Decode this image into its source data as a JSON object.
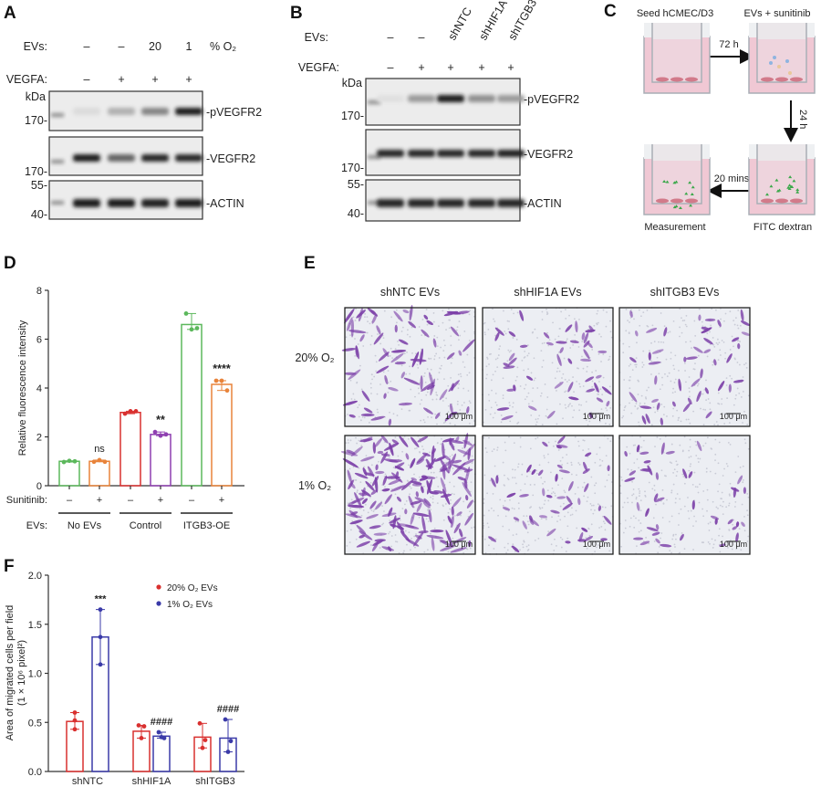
{
  "panel_labels": {
    "a": "A",
    "b": "B",
    "c": "C",
    "d": "D",
    "e": "E",
    "f": "F"
  },
  "panel_a": {
    "evs_label": "EVs:",
    "evs_values": [
      "–",
      "–",
      "20",
      "1"
    ],
    "evs_unit": "% O₂",
    "vegfa_label": "VEGFA:",
    "vegfa_values": [
      "–",
      "+",
      "+",
      "+"
    ],
    "kda": "kDa",
    "markers": {
      "p170": "170-",
      "v170": "170-",
      "a55": "55-",
      "a40": "40-"
    },
    "blots": [
      {
        "name": "-pVEGFR2",
        "band_intensity": [
          0.05,
          0.25,
          0.45,
          0.95
        ]
      },
      {
        "name": "-VEGFR2",
        "band_intensity": [
          0.95,
          0.6,
          0.9,
          0.9
        ]
      },
      {
        "name": "-ACTIN",
        "band_intensity": [
          0.95,
          0.95,
          0.92,
          0.95
        ]
      }
    ]
  },
  "panel_b": {
    "evs_label": "EVs:",
    "evs_values": [
      "–",
      "–",
      "shNTC",
      "shHIF1A",
      "shITGB3"
    ],
    "vegfa_label": "VEGFA:",
    "vegfa_values": [
      "–",
      "+",
      "+",
      "+",
      "+"
    ],
    "kda": "kDa",
    "markers": {
      "p170": "170-",
      "v170": "170-",
      "a55": "55-",
      "a40": "40-"
    },
    "blots": [
      {
        "name": "-pVEGFR2",
        "band_intensity": [
          0.03,
          0.35,
          0.95,
          0.4,
          0.35
        ]
      },
      {
        "name": "-VEGFR2",
        "band_intensity": [
          0.9,
          0.9,
          0.9,
          0.9,
          0.92
        ]
      },
      {
        "name": "-ACTIN",
        "band_intensity": [
          0.9,
          0.9,
          0.9,
          0.9,
          0.9
        ]
      }
    ]
  },
  "panel_c": {
    "steps": [
      "Seed hCMEC/D3",
      "EVs + sunitinib",
      "FITC dextran",
      "Measurement"
    ],
    "arrows": [
      "72 h",
      "24 h",
      "20 mins"
    ],
    "colors": {
      "medium": "#f0c8d4",
      "well": "#a9aeb5",
      "fitc": "#3aa84a"
    }
  },
  "panel_e": {
    "columns": [
      "shNTC EVs",
      "shHIF1A EVs",
      "shITGB3 EVs"
    ],
    "rows": [
      "20% O₂",
      "1% O₂"
    ],
    "scale_bar": "100 μm",
    "stain_color": "#7b3fa8"
  },
  "chart_data": [
    {
      "type": "bar",
      "panel": "D",
      "ylabel": "Relative fluorescence intensity",
      "ylim": [
        0,
        8
      ],
      "yticks": [
        0,
        2,
        4,
        6,
        8
      ],
      "row_labels": {
        "sunitinib": "Sunitinib:",
        "evs": "EVs:"
      },
      "sunitinib": [
        "–",
        "+",
        "–",
        "+",
        "–",
        "+"
      ],
      "groups": [
        "No EVs",
        "Control",
        "ITGB3-OE"
      ],
      "values": [
        1.0,
        1.0,
        3.0,
        2.1,
        6.6,
        4.15
      ],
      "points": [
        [
          0.97,
          1.02,
          1.0
        ],
        [
          0.98,
          1.05,
          0.98
        ],
        [
          2.95,
          3.05,
          3.05
        ],
        [
          2.2,
          2.05,
          2.1
        ],
        [
          7.05,
          6.4,
          6.45
        ],
        [
          4.3,
          4.3,
          3.9
        ]
      ],
      "colors": [
        "#5cb85c",
        "#e8833a",
        "#d9302f",
        "#8e3fb0",
        "#5cb85c",
        "#e8833a"
      ],
      "annotations": [
        "",
        "ns",
        "",
        "**",
        "",
        "****"
      ]
    },
    {
      "type": "bar",
      "panel": "F",
      "ylabel": "Area of migrated cells per field",
      "ylabel2": "(1 × 10⁶ pixel²)",
      "ylim": [
        0,
        2.0
      ],
      "yticks": [
        "0.0",
        "0.5",
        "1.0",
        "1.5",
        "2.0"
      ],
      "categories": [
        "shNTC",
        "shHIF1A",
        "shITGB3"
      ],
      "legend_position": "top-center",
      "series": [
        {
          "name": "20% O₂ EVs",
          "color": "#d9302f",
          "values": [
            0.51,
            0.41,
            0.35
          ],
          "points": [
            [
              0.6,
              0.52,
              0.43
            ],
            [
              0.47,
              0.46,
              0.34
            ],
            [
              0.49,
              0.32,
              0.24
            ]
          ],
          "annotations": [
            "",
            "",
            ""
          ]
        },
        {
          "name": "1% O₂ EVs",
          "color": "#3a3aa8",
          "values": [
            1.37,
            0.36,
            0.34
          ],
          "points": [
            [
              1.65,
              1.37,
              1.09
            ],
            [
              0.4,
              0.34,
              0.35
            ],
            [
              0.53,
              0.31,
              0.2
            ]
          ],
          "annotations": [
            "***",
            "####",
            "####"
          ]
        }
      ]
    }
  ]
}
